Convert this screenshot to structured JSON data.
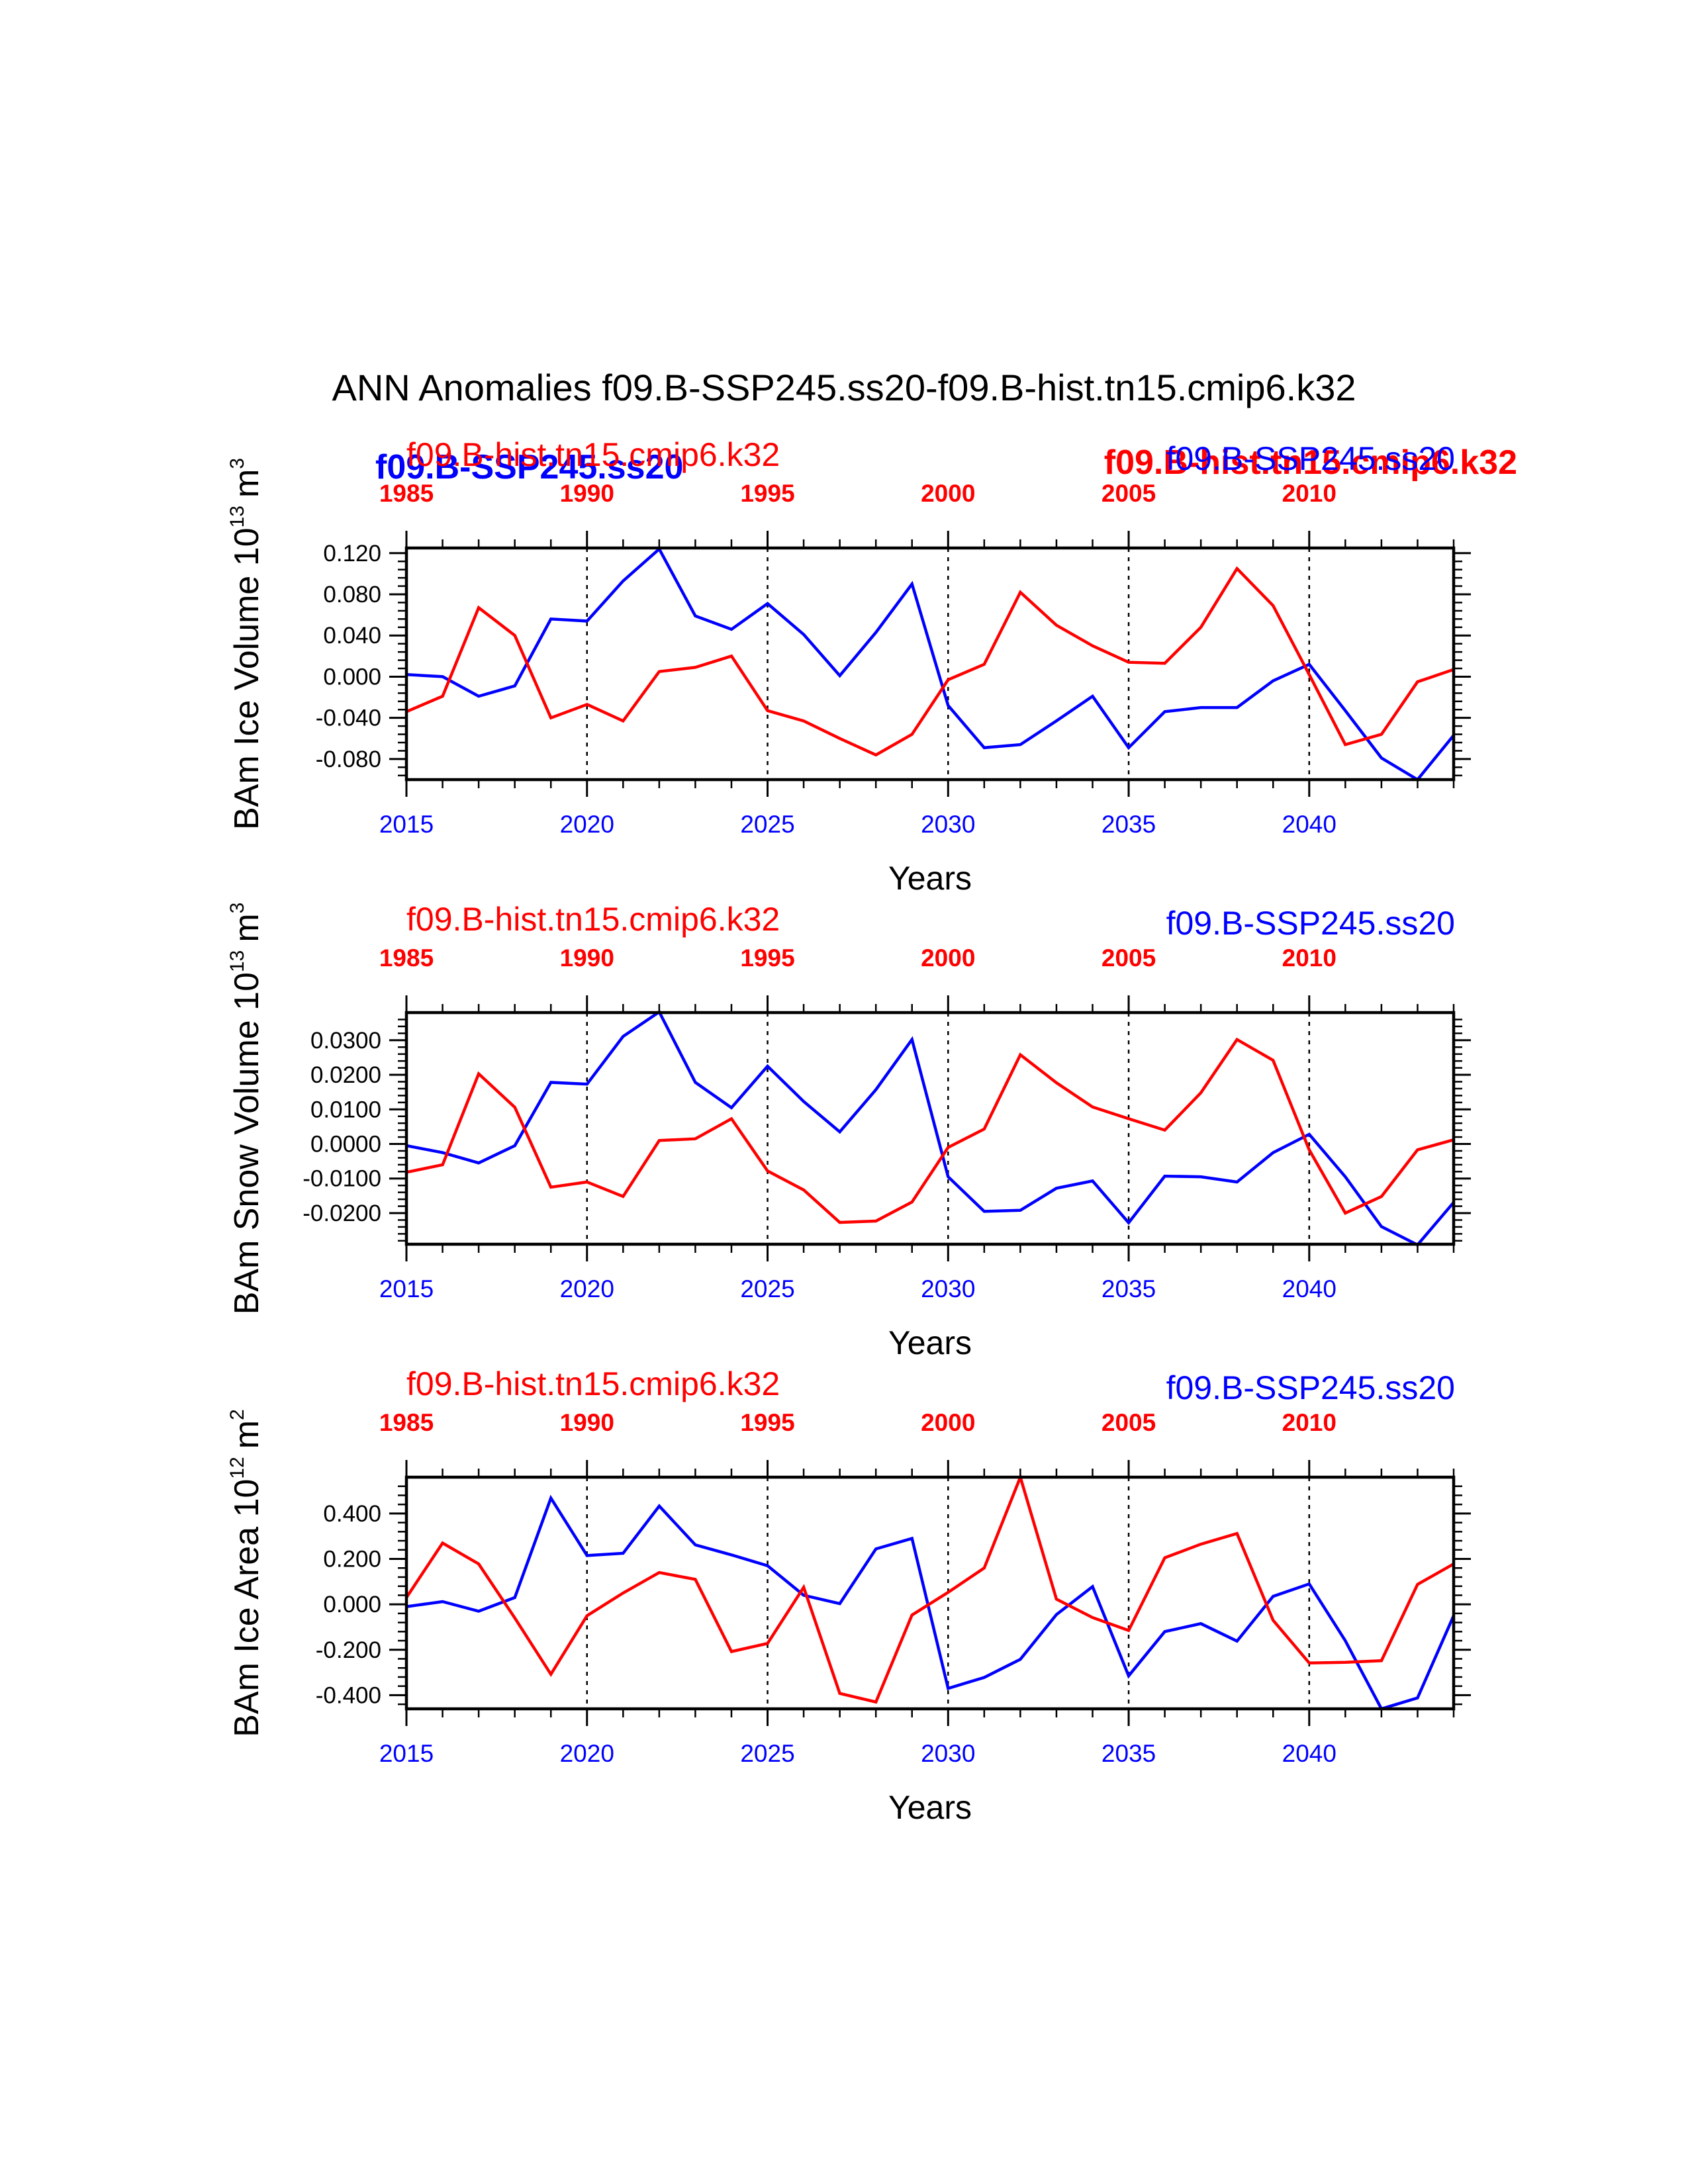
{
  "title": "ANN Anomalies f09.B-SSP245.ss20-f09.B-hist.tn15.cmip6.k32",
  "colors": {
    "ssp": "#0000ff",
    "hist": "#ff0000",
    "axis": "#000000"
  },
  "overlap_labels": {
    "ssp": "f09.B-SSP245.ss20",
    "hist": "f09.B-hist.tn15.cmip6.k32"
  },
  "chart_data": [
    {
      "type": "line",
      "ylabel": "BAm Ice Volume 10",
      "ylabel_exp": "13",
      "ylabel_unit": "m",
      "ylabel_unit_exp": "3",
      "xlabel": "Years",
      "ylim": [
        -0.1,
        0.125
      ],
      "yticks": [
        -0.08,
        -0.04,
        0.0,
        0.04,
        0.08,
        0.12
      ],
      "ytick_labels": [
        "-0.080",
        "-0.040",
        "0.000",
        "0.040",
        "0.080",
        "0.120"
      ],
      "yminor_step": 0.008,
      "series": [
        {
          "name": "f09.B-SSP245.ss20",
          "axis": "bottom",
          "color": "#0000ff",
          "x": [
            2015,
            2016,
            2017,
            2018,
            2019,
            2020,
            2021,
            2022,
            2023,
            2024,
            2025,
            2026,
            2027,
            2028,
            2029,
            2030,
            2031,
            2032,
            2033,
            2034,
            2035,
            2036,
            2037,
            2038,
            2039,
            2040,
            2041,
            2042,
            2043,
            2044
          ],
          "y": [
            0.002,
            0.0,
            -0.019,
            -0.009,
            0.056,
            0.054,
            0.093,
            0.124,
            0.059,
            0.046,
            0.071,
            0.041,
            0.001,
            0.043,
            0.09,
            -0.028,
            -0.069,
            -0.066,
            -0.043,
            -0.019,
            -0.069,
            -0.034,
            -0.03,
            -0.03,
            -0.004,
            0.012,
            -0.033,
            -0.079,
            -0.1,
            -0.057
          ]
        },
        {
          "name": "f09.B-hist.tn15.cmip6.k32",
          "axis": "top",
          "color": "#ff0000",
          "x": [
            1985,
            1986,
            1987,
            1988,
            1989,
            1990,
            1991,
            1992,
            1993,
            1994,
            1995,
            1996,
            1997,
            1998,
            1999,
            2000,
            2001,
            2002,
            2003,
            2004,
            2005,
            2006,
            2007,
            2008,
            2009,
            2010,
            2011,
            2012,
            2013,
            2014
          ],
          "y": [
            -0.034,
            -0.019,
            0.067,
            0.04,
            -0.04,
            -0.027,
            -0.043,
            0.005,
            0.009,
            0.02,
            -0.033,
            -0.043,
            -0.06,
            -0.076,
            -0.056,
            -0.003,
            0.012,
            0.082,
            0.05,
            0.03,
            0.014,
            0.013,
            0.048,
            0.105,
            0.069,
            0.002,
            -0.066,
            -0.056,
            -0.005,
            0.007
          ]
        }
      ],
      "bottom_axis": {
        "min": 2015,
        "max": 2044,
        "ticks": [
          2015,
          2020,
          2025,
          2030,
          2035,
          2040
        ],
        "color": "#0000ff",
        "series_label": "f09.B-SSP245.ss20"
      },
      "top_axis": {
        "min": 1985,
        "max": 2014,
        "ticks": [
          1985,
          1990,
          1995,
          2000,
          2005,
          2010
        ],
        "color": "#ff0000",
        "series_label": "f09.B-hist.tn15.cmip6.k32"
      },
      "vlines_at": [
        2020,
        2025,
        2030,
        2035,
        2040
      ]
    },
    {
      "type": "line",
      "ylabel": "BAm Snow Volume 10",
      "ylabel_exp": "13",
      "ylabel_unit": "m",
      "ylabel_unit_exp": "3",
      "xlabel": "Years",
      "ylim": [
        -0.029,
        0.038
      ],
      "yticks": [
        -0.02,
        -0.01,
        0.0,
        0.01,
        0.02,
        0.03
      ],
      "ytick_labels": [
        "-0.0200",
        "-0.0100",
        "0.0000",
        "0.0100",
        "0.0200",
        "0.0300"
      ],
      "yminor_step": 0.002,
      "series": [
        {
          "name": "f09.B-SSP245.ss20",
          "axis": "bottom",
          "color": "#0000ff",
          "x": [
            2015,
            2016,
            2017,
            2018,
            2019,
            2020,
            2021,
            2022,
            2023,
            2024,
            2025,
            2026,
            2027,
            2028,
            2029,
            2030,
            2031,
            2032,
            2033,
            2034,
            2035,
            2036,
            2037,
            2038,
            2039,
            2040,
            2041,
            2042,
            2043,
            2044
          ],
          "y": [
            -0.0005,
            -0.0025,
            -0.0055,
            -0.0005,
            0.0178,
            0.0173,
            0.0311,
            0.0382,
            0.0178,
            0.0105,
            0.0225,
            0.0123,
            0.0035,
            0.0157,
            0.0302,
            -0.0095,
            -0.0195,
            -0.0192,
            -0.0128,
            -0.0107,
            -0.0228,
            -0.0093,
            -0.0095,
            -0.011,
            -0.0025,
            0.0028,
            -0.0095,
            -0.0239,
            -0.0292,
            -0.0169
          ]
        },
        {
          "name": "f09.B-hist.tn15.cmip6.k32",
          "axis": "top",
          "color": "#ff0000",
          "x": [
            1985,
            1986,
            1987,
            1988,
            1989,
            1990,
            1991,
            1992,
            1993,
            1994,
            1995,
            1996,
            1997,
            1998,
            1999,
            2000,
            2001,
            2002,
            2003,
            2004,
            2005,
            2006,
            2007,
            2008,
            2009,
            2010,
            2011,
            2012,
            2013,
            2014
          ],
          "y": [
            -0.0082,
            -0.006,
            0.0203,
            0.0106,
            -0.0125,
            -0.011,
            -0.0152,
            0.001,
            0.0015,
            0.0073,
            -0.0078,
            -0.0133,
            -0.0227,
            -0.0223,
            -0.0168,
            -0.001,
            0.0043,
            0.0258,
            0.0177,
            0.0107,
            0.0073,
            0.004,
            0.0148,
            0.0302,
            0.0242,
            -0.0017,
            -0.02,
            -0.0152,
            -0.0017,
            0.0012
          ]
        }
      ],
      "bottom_axis": {
        "min": 2015,
        "max": 2044,
        "ticks": [
          2015,
          2020,
          2025,
          2030,
          2035,
          2040
        ],
        "color": "#0000ff",
        "series_label": "f09.B-SSP245.ss20"
      },
      "top_axis": {
        "min": 1985,
        "max": 2014,
        "ticks": [
          1985,
          1990,
          1995,
          2000,
          2005,
          2010
        ],
        "color": "#ff0000",
        "series_label": "f09.B-hist.tn15.cmip6.k32"
      },
      "vlines_at": [
        2020,
        2025,
        2030,
        2035,
        2040
      ]
    },
    {
      "type": "line",
      "ylabel": "BAm Ice Area 10",
      "ylabel_exp": "12",
      "ylabel_unit": "m",
      "ylabel_unit_exp": "2",
      "xlabel": "Years",
      "ylim": [
        -0.46,
        0.56
      ],
      "yticks": [
        -0.4,
        -0.2,
        0.0,
        0.2,
        0.4
      ],
      "ytick_labels": [
        "-0.400",
        "-0.200",
        "0.000",
        "0.200",
        "0.400"
      ],
      "yminor_step": 0.04,
      "series": [
        {
          "name": "f09.B-SSP245.ss20",
          "axis": "bottom",
          "color": "#0000ff",
          "x": [
            2015,
            2016,
            2017,
            2018,
            2019,
            2020,
            2021,
            2022,
            2023,
            2024,
            2025,
            2026,
            2027,
            2028,
            2029,
            2030,
            2031,
            2032,
            2033,
            2034,
            2035,
            2036,
            2037,
            2038,
            2039,
            2040,
            2041,
            2042,
            2043,
            2044
          ],
          "y": [
            -0.01,
            0.012,
            -0.03,
            0.03,
            0.468,
            0.215,
            0.225,
            0.433,
            0.262,
            0.218,
            0.17,
            0.04,
            0.003,
            0.244,
            0.29,
            -0.37,
            -0.322,
            -0.242,
            -0.045,
            0.078,
            -0.315,
            -0.12,
            -0.085,
            -0.162,
            0.035,
            0.09,
            -0.16,
            -0.46,
            -0.412,
            -0.05
          ]
        },
        {
          "name": "f09.B-hist.tn15.cmip6.k32",
          "axis": "top",
          "color": "#ff0000",
          "x": [
            1985,
            1986,
            1987,
            1988,
            1989,
            1990,
            1991,
            1992,
            1993,
            1994,
            1995,
            1996,
            1997,
            1998,
            1999,
            2000,
            2001,
            2002,
            2003,
            2004,
            2005,
            2006,
            2007,
            2008,
            2009,
            2010,
            2011,
            2012,
            2013,
            2014
          ],
          "y": [
            0.03,
            0.27,
            0.178,
            -0.06,
            -0.308,
            -0.05,
            0.05,
            0.14,
            0.11,
            -0.208,
            -0.172,
            0.075,
            -0.392,
            -0.43,
            -0.047,
            0.053,
            0.16,
            0.56,
            0.023,
            -0.058,
            -0.115,
            0.205,
            0.265,
            0.312,
            -0.07,
            -0.258,
            -0.255,
            -0.248,
            0.088,
            0.178
          ]
        }
      ],
      "bottom_axis": {
        "min": 2015,
        "max": 2044,
        "ticks": [
          2015,
          2020,
          2025,
          2030,
          2035,
          2040
        ],
        "color": "#0000ff",
        "series_label": "f09.B-SSP245.ss20"
      },
      "top_axis": {
        "min": 1985,
        "max": 2014,
        "ticks": [
          1985,
          1990,
          1995,
          2000,
          2005,
          2010
        ],
        "color": "#ff0000",
        "series_label": "f09.B-hist.tn15.cmip6.k32"
      },
      "vlines_at": [
        2020,
        2025,
        2030,
        2035,
        2040
      ]
    }
  ]
}
